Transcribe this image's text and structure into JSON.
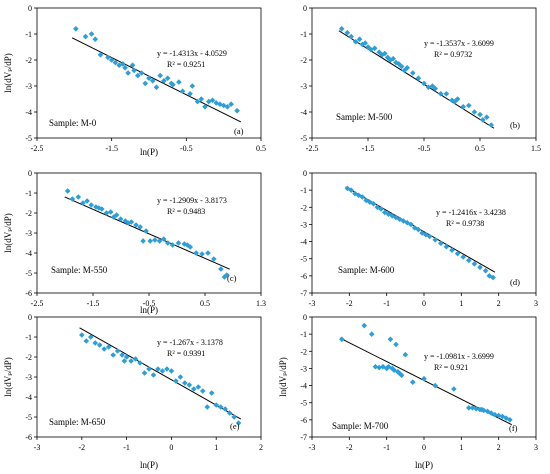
{
  "chart_data": [
    {
      "type": "scatter",
      "panel": "(a)",
      "sample": "Sample: M-0",
      "equation": "y = -1.4313x - 4.0529",
      "r2": "R² = 0.9251",
      "slope": -1.4313,
      "intercept": -4.0529,
      "xlabel": "ln(P)",
      "ylabel": "ln(dVₚ/dP)",
      "xlim": [
        -2.5,
        0.5
      ],
      "ylim": [
        -5,
        0
      ],
      "xticks": [
        "-2.5",
        "-1.5",
        "-0.5",
        "0.5"
      ],
      "yticks": [
        "0",
        "-1",
        "-2",
        "-3",
        "-4",
        "-5"
      ],
      "x": [
        -1.98,
        -1.85,
        -1.77,
        -1.72,
        -1.65,
        -1.55,
        -1.5,
        -1.45,
        -1.4,
        -1.35,
        -1.32,
        -1.28,
        -1.22,
        -1.2,
        -1.15,
        -1.1,
        -1.05,
        -1.0,
        -0.95,
        -0.9,
        -0.85,
        -0.8,
        -0.75,
        -0.7,
        -0.68,
        -0.6,
        -0.55,
        -0.45,
        -0.42,
        -0.35,
        -0.3,
        -0.25,
        -0.2,
        -0.15,
        -0.1,
        -0.05,
        0.0,
        0.05,
        0.1,
        0.18
      ],
      "y": [
        -0.8,
        -1.1,
        -1.0,
        -1.2,
        -1.8,
        -1.9,
        -2.0,
        -2.1,
        -2.2,
        -2.15,
        -2.3,
        -2.5,
        -2.2,
        -2.4,
        -2.6,
        -2.5,
        -2.9,
        -2.7,
        -2.8,
        -3.05,
        -2.6,
        -2.8,
        -2.7,
        -2.9,
        -2.95,
        -2.85,
        -3.2,
        -3.3,
        -3.0,
        -3.6,
        -3.5,
        -3.8,
        -3.6,
        -3.55,
        -3.65,
        -3.7,
        -3.75,
        -3.8,
        -3.7,
        -3.95
      ]
    },
    {
      "type": "scatter",
      "panel": "(b)",
      "sample": "Sample: M-500",
      "equation": "y = -1.3537x - 3.6099",
      "r2": "R² = 0.9732",
      "slope": -1.3537,
      "intercept": -3.6099,
      "xlabel": "",
      "ylabel": "",
      "xlim": [
        -2.5,
        1.5
      ],
      "ylim": [
        -5,
        0
      ],
      "xticks": [
        "-2.5",
        "-1.5",
        "-0.5",
        "0.5",
        "1.5"
      ],
      "yticks": [
        "0",
        "-1",
        "-2",
        "-3",
        "-4",
        "-5"
      ],
      "x": [
        -1.97,
        -1.87,
        -1.8,
        -1.72,
        -1.65,
        -1.6,
        -1.55,
        -1.5,
        -1.45,
        -1.38,
        -1.3,
        -1.25,
        -1.2,
        -1.15,
        -1.1,
        -1.05,
        -1.0,
        -0.95,
        -0.9,
        -0.85,
        -0.8,
        -0.7,
        -0.6,
        -0.5,
        -0.42,
        -0.35,
        -0.3,
        -0.2,
        -0.1,
        0.0,
        0.05,
        0.1,
        0.2,
        0.3,
        0.4,
        0.5,
        0.55,
        0.62,
        0.7
      ],
      "y": [
        -0.8,
        -0.95,
        -1.1,
        -1.3,
        -1.2,
        -1.4,
        -1.35,
        -1.5,
        -1.6,
        -1.55,
        -1.7,
        -1.8,
        -1.75,
        -1.9,
        -2.0,
        -1.95,
        -2.1,
        -2.15,
        -2.25,
        -2.4,
        -2.3,
        -2.5,
        -2.7,
        -2.9,
        -3.05,
        -3.0,
        -3.1,
        -3.3,
        -3.3,
        -3.55,
        -3.6,
        -3.5,
        -3.8,
        -3.75,
        -4.0,
        -4.1,
        -4.3,
        -4.2,
        -4.5
      ]
    },
    {
      "type": "scatter",
      "panel": "(c)",
      "sample": "Sample: M-550",
      "equation": "y = -1.2909x - 3.8173",
      "r2": "R² = 0.9483",
      "slope": -1.2909,
      "intercept": -3.8173,
      "xlabel": "ln(P)",
      "ylabel": "ln(dVₚ/dP)",
      "xlim": [
        -2.5,
        1.3
      ],
      "ylim": [
        -6,
        0
      ],
      "xticks": [
        "-2.5",
        "-1.5",
        "-0.5",
        "0.5",
        "1.3"
      ],
      "yticks": [
        "0",
        "-1",
        "-2",
        "-3",
        "-4",
        "-5",
        "-6"
      ],
      "x": [
        -1.98,
        -1.9,
        -1.8,
        -1.72,
        -1.65,
        -1.58,
        -1.5,
        -1.45,
        -1.4,
        -1.32,
        -1.25,
        -1.2,
        -1.15,
        -1.08,
        -1.0,
        -0.95,
        -0.9,
        -0.82,
        -0.75,
        -0.7,
        -0.65,
        -0.58,
        -0.5,
        -0.42,
        -0.35,
        -0.28,
        -0.2,
        -0.1,
        0.0,
        0.05,
        0.1,
        0.2,
        0.3,
        0.4,
        0.5,
        0.62,
        0.68,
        0.72
      ],
      "y": [
        -0.9,
        -1.3,
        -1.2,
        -1.5,
        -1.4,
        -1.6,
        -1.7,
        -1.75,
        -1.8,
        -2.0,
        -1.95,
        -2.2,
        -2.1,
        -2.3,
        -2.4,
        -2.5,
        -2.45,
        -2.6,
        -2.7,
        -3.4,
        -2.9,
        -3.4,
        -3.35,
        -3.4,
        -3.3,
        -3.5,
        -3.6,
        -3.5,
        -3.55,
        -3.6,
        -3.7,
        -4.0,
        -4.05,
        -4.0,
        -4.3,
        -4.8,
        -5.2,
        -5.1
      ]
    },
    {
      "type": "scatter",
      "panel": "(d)",
      "sample": "Sample: M-600",
      "equation": "y = -1.2416x - 3.4238",
      "r2": "R² = 0.9738",
      "slope": -1.2416,
      "intercept": -3.4238,
      "xlabel": "",
      "ylabel": "",
      "xlim": [
        -3,
        3
      ],
      "ylim": [
        -7,
        0
      ],
      "xticks": [
        "-3",
        "-2",
        "-1",
        "0",
        "1",
        "2",
        "3"
      ],
      "yticks": [
        "0",
        "-1",
        "-2",
        "-3",
        "-4",
        "-5",
        "-6",
        "-7"
      ],
      "x": [
        -2.05,
        -1.95,
        -1.85,
        -1.75,
        -1.65,
        -1.55,
        -1.45,
        -1.35,
        -1.25,
        -1.15,
        -1.05,
        -0.95,
        -0.85,
        -0.75,
        -0.65,
        -0.55,
        -0.45,
        -0.35,
        -0.25,
        -0.15,
        -0.05,
        0.05,
        0.15,
        0.3,
        0.45,
        0.6,
        0.75,
        0.9,
        1.05,
        1.2,
        1.35,
        1.5,
        1.65,
        1.75,
        1.85
      ],
      "y": [
        -0.9,
        -1.0,
        -1.2,
        -1.3,
        -1.4,
        -1.6,
        -1.7,
        -1.8,
        -2.0,
        -2.1,
        -2.3,
        -2.4,
        -2.5,
        -2.6,
        -2.7,
        -2.8,
        -2.9,
        -3.0,
        -3.2,
        -3.3,
        -3.5,
        -3.6,
        -3.7,
        -3.9,
        -4.1,
        -4.3,
        -4.5,
        -4.7,
        -4.9,
        -5.1,
        -5.3,
        -5.5,
        -5.7,
        -6.0,
        -6.1
      ]
    },
    {
      "type": "scatter",
      "panel": "(e)",
      "sample": "Sample: M-650",
      "equation": "y = -1.267x - 3.1378",
      "r2": "R² = 0.9391",
      "slope": -1.267,
      "intercept": -3.1378,
      "xlabel": "ln(P)",
      "ylabel": "ln(dVₚ/dP)",
      "xlim": [
        -3,
        2
      ],
      "ylim": [
        -6,
        0
      ],
      "xticks": [
        "-3",
        "-2",
        "-1",
        "0",
        "1",
        "2"
      ],
      "yticks": [
        "0",
        "-1",
        "-2",
        "-3",
        "-4",
        "-5",
        "-6"
      ],
      "x": [
        -2.0,
        -1.9,
        -1.8,
        -1.7,
        -1.6,
        -1.5,
        -1.4,
        -1.3,
        -1.2,
        -1.1,
        -1.05,
        -1.0,
        -0.9,
        -0.8,
        -0.7,
        -0.6,
        -0.5,
        -0.4,
        -0.3,
        -0.2,
        -0.1,
        0.0,
        0.1,
        0.2,
        0.3,
        0.4,
        0.5,
        0.6,
        0.7,
        0.8,
        0.9,
        1.0,
        1.1,
        1.2,
        1.3,
        1.4,
        1.5
      ],
      "y": [
        -0.9,
        -1.2,
        -1.0,
        -1.3,
        -1.4,
        -1.6,
        -1.5,
        -1.9,
        -1.7,
        -1.9,
        -2.2,
        -2.0,
        -2.2,
        -2.1,
        -2.3,
        -2.8,
        -2.6,
        -2.9,
        -2.6,
        -2.7,
        -2.6,
        -2.7,
        -3.2,
        -3.0,
        -3.3,
        -3.4,
        -3.6,
        -3.5,
        -3.7,
        -4.5,
        -3.8,
        -4.4,
        -4.5,
        -4.6,
        -4.8,
        -5.0,
        -5.3
      ]
    },
    {
      "type": "scatter",
      "panel": "(f)",
      "sample": "Sample: M-700",
      "equation": "y = -1.0981x - 3.6999",
      "r2": "R² = 0.921",
      "slope": -1.0981,
      "intercept": -3.6999,
      "xlabel": "ln(P)",
      "ylabel": "ln(dVₚ/dP)",
      "xlim": [
        -3,
        3
      ],
      "ylim": [
        -7,
        0
      ],
      "xticks": [
        "-3",
        "-2",
        "-1",
        "0",
        "1",
        "2",
        "3"
      ],
      "yticks": [
        "0",
        "-1",
        "-2",
        "-3",
        "-4",
        "-5",
        "-6",
        "-7"
      ],
      "x": [
        -2.2,
        -1.6,
        -1.4,
        -1.3,
        -1.2,
        -1.1,
        -1.0,
        -0.95,
        -0.9,
        -0.85,
        -0.8,
        -0.75,
        -0.7,
        -0.65,
        -0.6,
        -0.5,
        -0.3,
        0.0,
        0.3,
        0.8,
        1.2,
        1.3,
        1.4,
        1.5,
        1.55,
        1.6,
        1.7,
        1.8,
        1.9,
        2.0,
        2.1,
        2.2,
        2.3
      ],
      "y": [
        -1.3,
        -0.5,
        -1.0,
        -2.9,
        -2.95,
        -2.9,
        -3.0,
        -2.9,
        -1.3,
        -3.0,
        -3.1,
        -1.6,
        -3.2,
        -3.3,
        -3.4,
        -2.2,
        -3.8,
        -3.6,
        -4.0,
        -4.2,
        -5.3,
        -5.3,
        -5.35,
        -5.4,
        -5.4,
        -5.45,
        -5.5,
        -5.6,
        -5.7,
        -5.75,
        -5.8,
        -5.9,
        -6.0
      ]
    }
  ]
}
